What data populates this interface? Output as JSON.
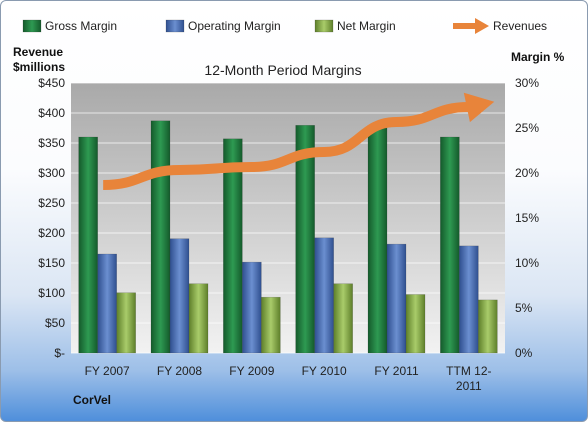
{
  "chart_data": {
    "type": "bar",
    "title": "12-Month Period Margins",
    "categories": [
      "FY 2007",
      "FY 2008",
      "FY 2009",
      "FY 2010",
      "FY 2011",
      "TTM 12-2011"
    ],
    "series": [
      {
        "name": "Gross Margin",
        "axis": "right",
        "color": "#1f7a3e",
        "values": [
          24.0,
          25.8,
          23.8,
          25.3,
          25.3,
          24.0
        ]
      },
      {
        "name": "Operating Margin",
        "axis": "right",
        "color": "#4a6fb5",
        "values": [
          11.0,
          12.7,
          10.1,
          12.8,
          12.1,
          11.9
        ]
      },
      {
        "name": "Net Margin",
        "axis": "right",
        "color": "#8bb04c",
        "values": [
          6.7,
          7.7,
          6.2,
          7.7,
          6.5,
          5.9
        ]
      },
      {
        "name": "Revenues",
        "axis": "left",
        "type": "line",
        "color": "#e8843a",
        "values": [
          280,
          305,
          310,
          335,
          385,
          410
        ]
      }
    ],
    "left_axis": {
      "label_line1": "Revenue",
      "label_line2": "$millions",
      "ylim": [
        0,
        450
      ],
      "ticks": [
        "$-",
        "$50",
        "$100",
        "$150",
        "$200",
        "$250",
        "$300",
        "$350",
        "$400",
        "$450"
      ]
    },
    "right_axis": {
      "label": "Margin %",
      "ylim": [
        0,
        30
      ],
      "ticks": [
        "0%",
        "5%",
        "10%",
        "15%",
        "20%",
        "25%",
        "30%"
      ]
    },
    "legend_position": "top",
    "grid": true,
    "company": "CorVel"
  }
}
